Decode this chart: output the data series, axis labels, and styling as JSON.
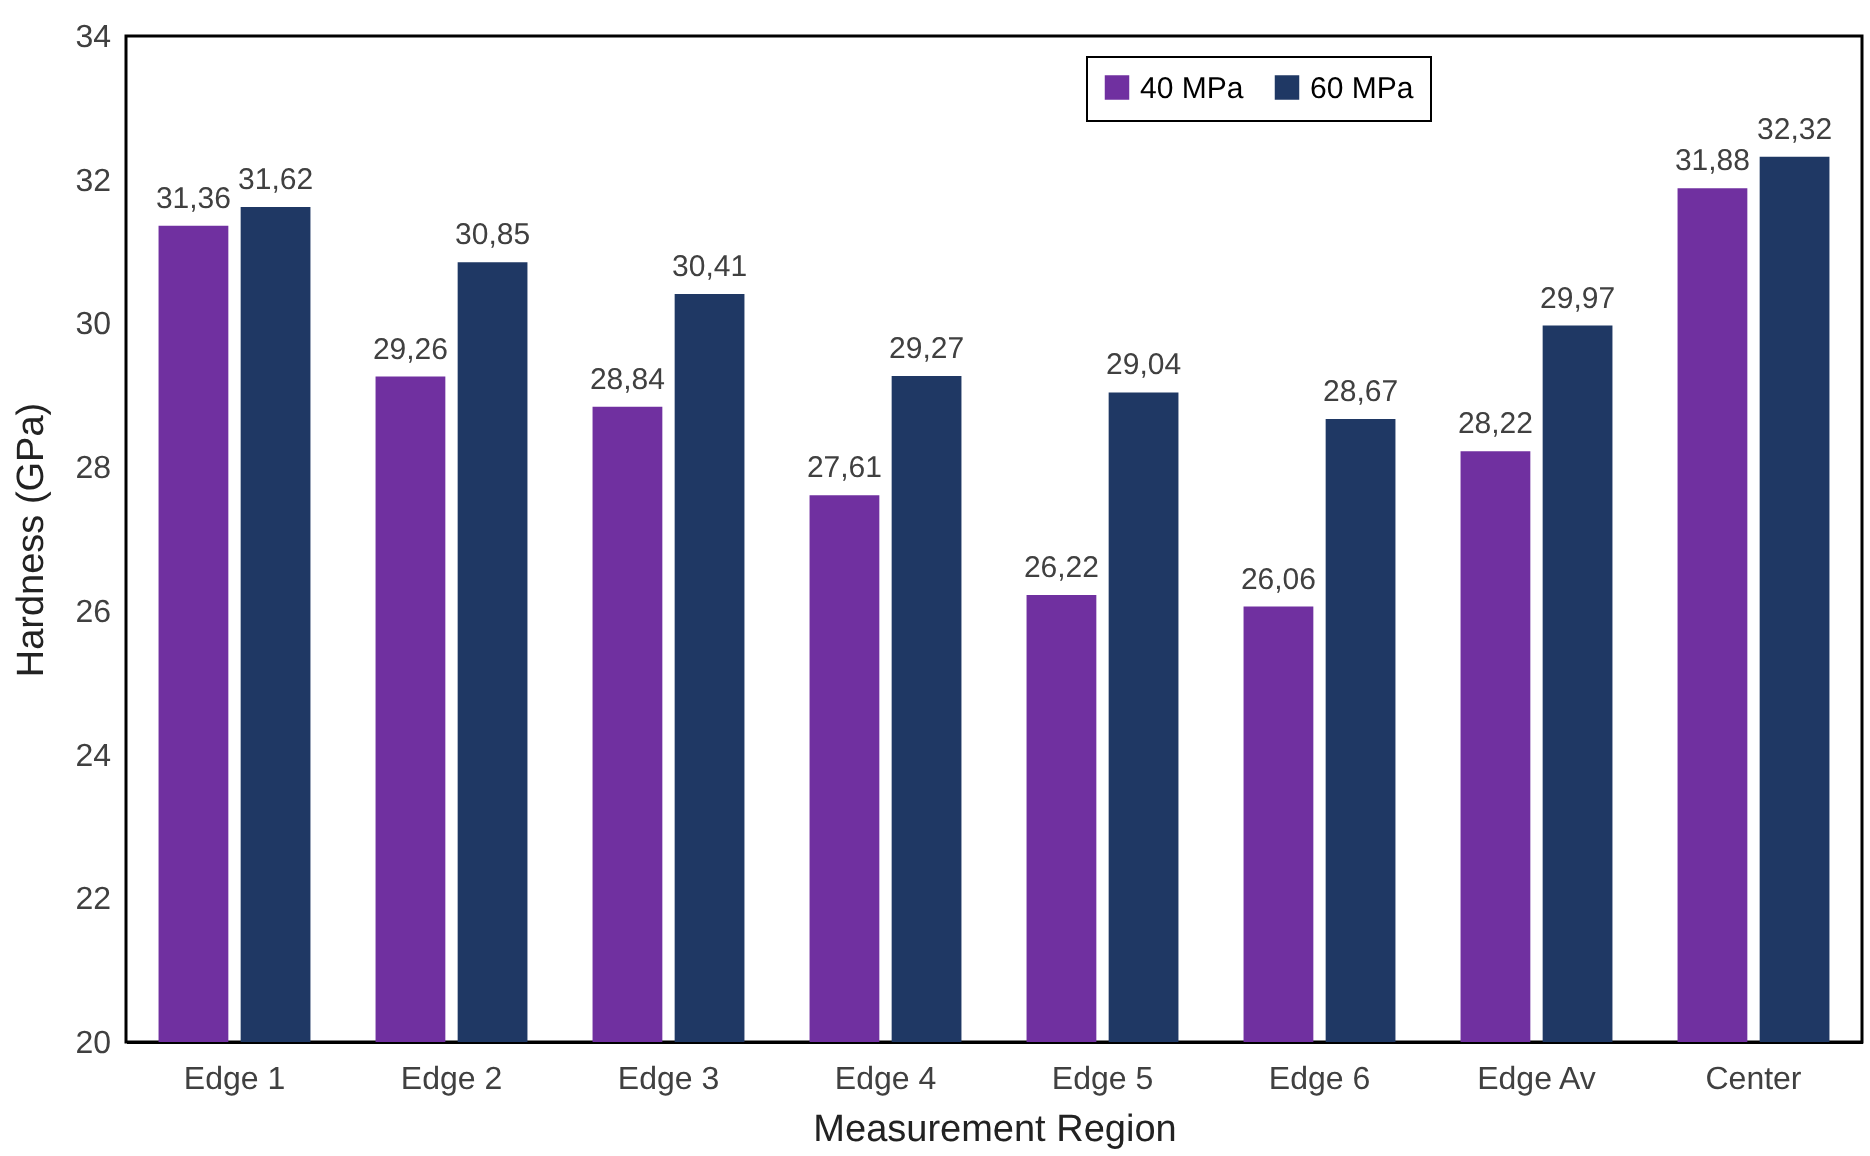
{
  "chart_data": {
    "type": "bar",
    "xlabel": "Measurement Region",
    "ylabel": "Hardness (GPa)",
    "categories": [
      "Edge 1",
      "Edge 2",
      "Edge 3",
      "Edge 4",
      "Edge 5",
      "Edge 6",
      "Edge Av",
      "Center"
    ],
    "series": [
      {
        "name": "40 MPa",
        "color": "#7030a0",
        "values": [
          31.36,
          29.26,
          28.84,
          27.61,
          26.22,
          26.06,
          28.22,
          31.88
        ],
        "value_labels": [
          "31,36",
          "29,26",
          "28,84",
          "27,61",
          "26,22",
          "26,06",
          "28,22",
          "31,88"
        ]
      },
      {
        "name": "60 MPa",
        "color": "#1f3864",
        "values": [
          31.62,
          30.85,
          30.41,
          29.27,
          29.04,
          28.67,
          29.97,
          32.32
        ],
        "value_labels": [
          "31,62",
          "30,85",
          "30,41",
          "29,27",
          "29,04",
          "28,67",
          "29,97",
          "32,32"
        ]
      }
    ],
    "ylim": [
      20,
      34
    ],
    "yticks": [
      20,
      22,
      24,
      26,
      28,
      30,
      32,
      34
    ],
    "grid": false,
    "legend": "top right"
  }
}
